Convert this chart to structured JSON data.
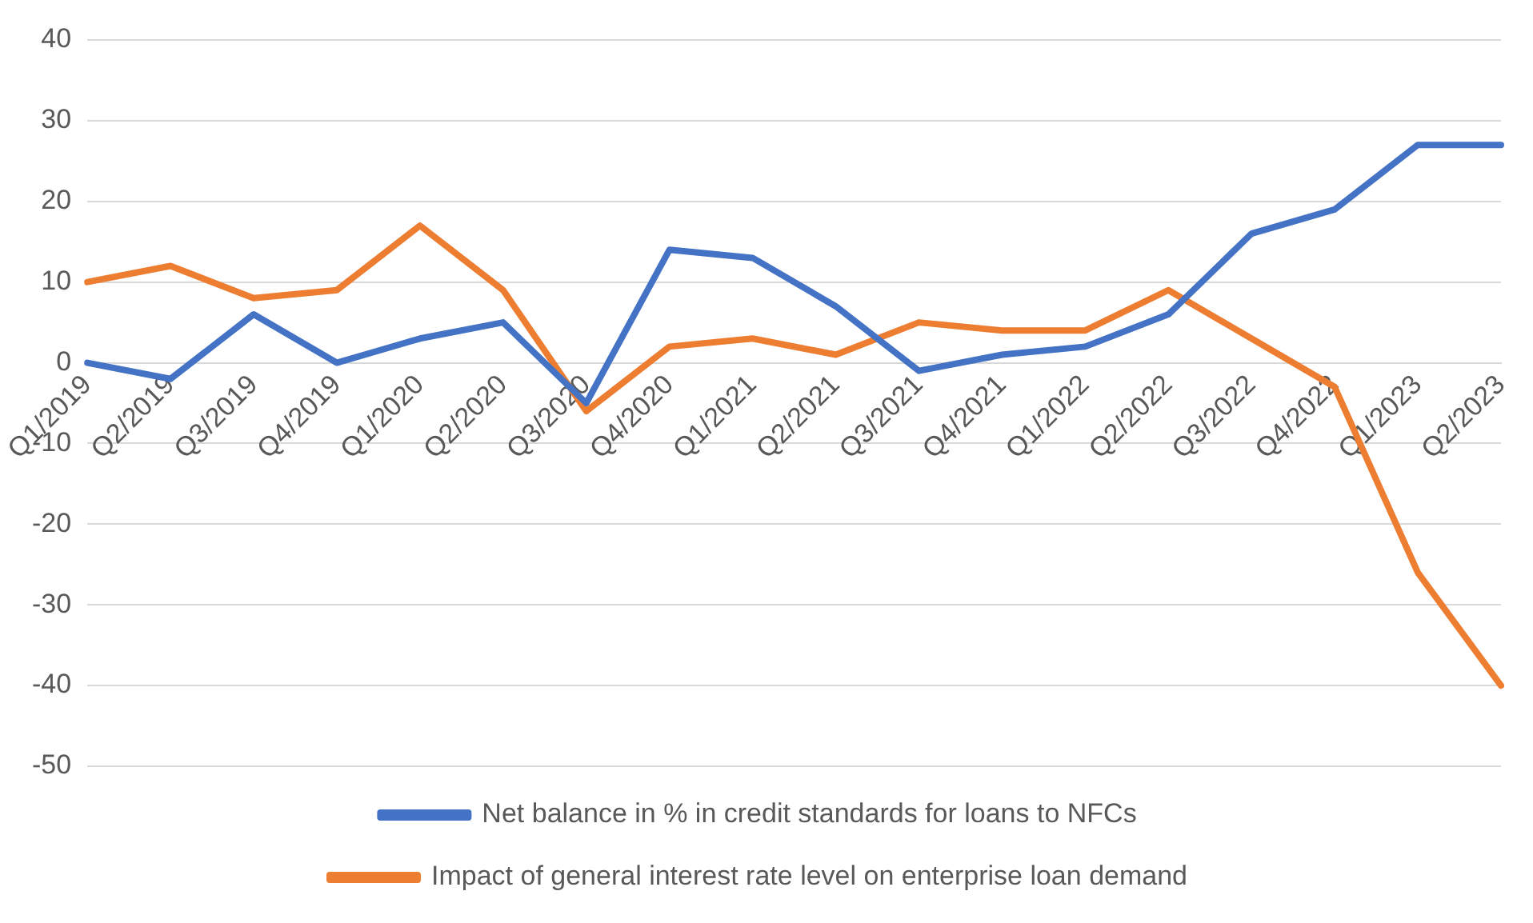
{
  "chart_data": {
    "type": "line",
    "categories": [
      "Q1/2019",
      "Q2/2019",
      "Q3/2019",
      "Q4/2019",
      "Q1/2020",
      "Q2/2020",
      "Q3/2020",
      "Q4/2020",
      "Q1/2021",
      "Q2/2021",
      "Q3/2021",
      "Q4/2021",
      "Q1/2022",
      "Q2/2022",
      "Q3/2022",
      "Q4/2022",
      "Q1/2023",
      "Q2/2023"
    ],
    "series": [
      {
        "name": "Net balance in % in credit standards for loans to NFCs",
        "color": "#4472c4",
        "values": [
          0,
          -2,
          6,
          0,
          3,
          5,
          -5,
          14,
          13,
          7,
          -1,
          1,
          2,
          6,
          16,
          19,
          27,
          27
        ]
      },
      {
        "name": "Impact of general interest rate level on enterprise loan demand",
        "color": "#ed7d31",
        "values": [
          10,
          12,
          8,
          9,
          17,
          9,
          -6,
          2,
          3,
          1,
          5,
          4,
          4,
          9,
          3,
          -3,
          -26,
          -40
        ]
      }
    ],
    "ylim": [
      -50,
      40
    ],
    "yticks": [
      -50,
      -40,
      -30,
      -20,
      -10,
      0,
      10,
      20,
      30,
      40
    ],
    "grid": "y",
    "legend": "bottom",
    "marker": "none",
    "line_style": "solid"
  }
}
